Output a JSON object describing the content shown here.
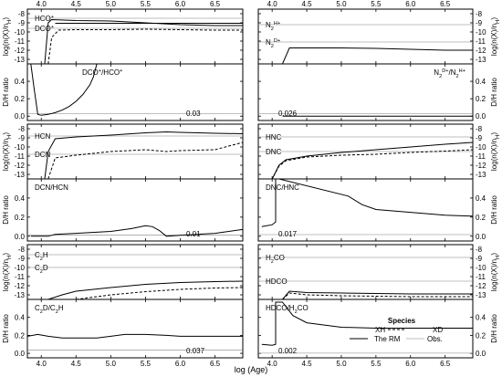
{
  "figure": {
    "x_axis_label": "log (Age)",
    "top_ticks": [
      "4.0",
      "4.5",
      "5.0",
      "5.5",
      "6.0",
      "6.5"
    ],
    "bottom_ticks": [
      "4.0",
      "4.5",
      "5.0",
      "5.5",
      "6.0",
      "6.5"
    ],
    "abund_ylabel_left": "log(n(X)/n",
    "abund_ylabel_sub": "H",
    "abund_ylabel_end": ")",
    "abund_ylabel_right_prefix": "log(n(X)/n",
    "ratio_ylabel": "D/H ratio",
    "abund_ticks": [
      "-8",
      "-9",
      "-10",
      "-11",
      "-12",
      "-13"
    ],
    "ratio_ticks": [
      "0.4",
      "0.2",
      "0.0"
    ],
    "legend": {
      "title": "Species",
      "xh_label": "XH",
      "xd_label": "XD",
      "rm_label": "The RM",
      "obs_label": "Obs."
    }
  },
  "chart_data": [
    {
      "type": "line",
      "panel": "abundance",
      "species_h": "HCO",
      "species_h_sup": "+",
      "species_d": "DCO",
      "species_d_sup": "+",
      "xlim": [
        3.8,
        6.9
      ],
      "ylim": [
        -13.5,
        -7.5
      ],
      "obs_h": -8.5,
      "obs_d": -9.6,
      "series": [
        {
          "name": "XH",
          "style": "solid",
          "x": [
            4.05,
            4.1,
            4.15,
            4.5,
            5.0,
            5.5,
            6.0,
            6.5,
            6.9
          ],
          "y": [
            -13.5,
            -9.0,
            -8.65,
            -8.75,
            -8.8,
            -9.0,
            -9.2,
            -9.3,
            -9.3
          ]
        },
        {
          "name": "XD",
          "style": "dashed",
          "x": [
            4.1,
            4.15,
            4.25,
            4.5,
            5.0,
            5.5,
            6.0,
            6.5,
            6.9
          ],
          "y": [
            -13.5,
            -10.6,
            -9.8,
            -9.75,
            -9.75,
            -9.7,
            -9.75,
            -9.8,
            -9.8
          ]
        },
        {
          "name": "RM",
          "style": "solid",
          "x": [
            4.2,
            6.9
          ],
          "y": [
            -9.05,
            -9.05
          ]
        }
      ]
    },
    {
      "type": "line",
      "panel": "ratio",
      "label_num": "DCO",
      "label_num_sup": "+",
      "label_den": "HCO",
      "label_den_sup": "+",
      "value_label": "0.03",
      "xlim": [
        3.8,
        6.9
      ],
      "ylim": [
        -0.05,
        0.6
      ],
      "obs": 0.03,
      "series": [
        {
          "name": "ratio",
          "style": "solid",
          "x": [
            3.85,
            3.9,
            3.95,
            4.0,
            4.1,
            4.2,
            4.3,
            4.4,
            4.5,
            4.6,
            4.7,
            4.75,
            4.8
          ],
          "y": [
            0.6,
            0.3,
            0.02,
            0.01,
            0.02,
            0.04,
            0.07,
            0.11,
            0.17,
            0.25,
            0.36,
            0.45,
            0.6
          ]
        }
      ]
    },
    {
      "type": "line",
      "panel": "abundance",
      "species_h": "N",
      "species_h_sub": "2",
      "species_h_sup": "H",
      "species_h_sup2": "+",
      "species_d": "N",
      "species_d_sub": "2",
      "species_d_sup": "D",
      "species_d_sup2": "+",
      "xlim": [
        3.8,
        6.9
      ],
      "ylim": [
        -13.5,
        -7.5
      ],
      "obs_h": -9.2,
      "obs_d": -11.1,
      "series": [
        {
          "name": "XH",
          "style": "solid",
          "x": [
            4.15,
            4.25,
            4.5,
            5.0,
            5.5,
            6.0,
            6.5,
            6.9
          ],
          "y": [
            -13.5,
            -11.75,
            -11.75,
            -11.75,
            -11.8,
            -11.9,
            -12.0,
            -12.0
          ]
        },
        {
          "name": "XD",
          "style": "dashed",
          "x": [
            5.5,
            6.0,
            6.5,
            6.9
          ],
          "y": [
            -13.5,
            -13.5,
            -13.5,
            -13.5
          ]
        }
      ]
    },
    {
      "type": "line",
      "panel": "ratio",
      "label_num": "N",
      "label_num_sub": "2",
      "label_num_sup": "D",
      "label_num_sup2": "+",
      "label_den": "N",
      "label_den_sub": "2",
      "label_den_sup": "H",
      "label_den_sup2": "+",
      "value_label": "0.026",
      "xlim": [
        3.8,
        6.9
      ],
      "ylim": [
        -0.05,
        0.6
      ],
      "obs": 0.026,
      "series": [
        {
          "name": "ratio",
          "style": "solid",
          "x": [
            4.15,
            4.2,
            4.3,
            4.5,
            5.0,
            5.5,
            6.0,
            6.5,
            6.9
          ],
          "y": [
            0.0,
            0.0,
            0.0,
            0.0,
            0.0,
            0.0,
            0.0,
            0.0,
            0.0
          ]
        }
      ]
    },
    {
      "type": "line",
      "panel": "abundance",
      "species_h": "HCN",
      "species_d": "DCN",
      "xlim": [
        3.8,
        6.9
      ],
      "ylim": [
        -13.5,
        -7.5
      ],
      "obs_h": -8.8,
      "obs_d": -10.8,
      "series": [
        {
          "name": "XH",
          "style": "solid",
          "x": [
            4.05,
            4.1,
            4.2,
            4.5,
            5.0,
            5.5,
            5.8,
            6.0,
            6.5,
            6.9
          ],
          "y": [
            -13.5,
            -10.5,
            -9.1,
            -8.9,
            -8.7,
            -8.45,
            -8.35,
            -8.4,
            -8.5,
            -8.55
          ]
        },
        {
          "name": "XD",
          "style": "dashed",
          "x": [
            4.1,
            4.2,
            4.5,
            5.0,
            5.5,
            5.8,
            6.0,
            6.5,
            6.9
          ],
          "y": [
            -13.5,
            -11.2,
            -10.9,
            -10.5,
            -10.3,
            -10.5,
            -10.4,
            -10.3,
            -9.5
          ]
        }
      ]
    },
    {
      "type": "line",
      "panel": "ratio",
      "label_num": "DCN",
      "label_den": "HCN",
      "value_label": "0.01",
      "xlim": [
        3.8,
        6.9
      ],
      "ylim": [
        -0.05,
        0.6
      ],
      "obs": 0.01,
      "series": [
        {
          "name": "ratio",
          "style": "solid",
          "x": [
            3.85,
            4.0,
            4.1,
            4.2,
            4.5,
            5.0,
            5.3,
            5.5,
            5.6,
            5.7,
            5.8,
            6.0,
            6.5,
            6.9
          ],
          "y": [
            0.0,
            0.0,
            0.0,
            0.02,
            0.03,
            0.05,
            0.08,
            0.11,
            0.1,
            0.06,
            0.0,
            0.01,
            0.03,
            0.07
          ]
        }
      ]
    },
    {
      "type": "line",
      "panel": "abundance",
      "species_h": "HNC",
      "species_d": "DNC",
      "xlim": [
        3.8,
        6.9
      ],
      "ylim": [
        -13.5,
        -7.5
      ],
      "obs_h": -8.9,
      "obs_d": -10.5,
      "series": [
        {
          "name": "XH",
          "style": "solid",
          "x": [
            3.85,
            4.0,
            4.1,
            4.2,
            4.5,
            5.0,
            5.5,
            6.0,
            6.5,
            6.9
          ],
          "y": [
            -13.5,
            -13.5,
            -12.0,
            -11.4,
            -11.0,
            -10.6,
            -10.3,
            -10.0,
            -9.7,
            -9.5
          ]
        },
        {
          "name": "XD",
          "style": "dashed",
          "x": [
            3.85,
            4.0,
            4.1,
            4.2,
            4.5,
            5.0,
            5.5,
            6.0,
            6.5,
            6.9
          ],
          "y": [
            -13.5,
            -13.5,
            -12.1,
            -11.5,
            -11.1,
            -10.9,
            -10.8,
            -10.6,
            -10.45,
            -10.3
          ]
        }
      ]
    },
    {
      "type": "line",
      "panel": "ratio",
      "label_num": "DNC",
      "label_den": "HNC",
      "value_label": "0.017",
      "xlim": [
        3.8,
        6.9
      ],
      "ylim": [
        -0.05,
        0.6
      ],
      "obs": 0.017,
      "series": [
        {
          "name": "ratio",
          "style": "solid",
          "x": [
            3.85,
            4.0,
            4.05,
            4.05,
            4.1,
            5.1,
            5.3,
            5.5,
            6.0,
            6.5,
            6.9
          ],
          "y": [
            0.1,
            0.12,
            0.15,
            0.6,
            0.6,
            0.42,
            0.33,
            0.28,
            0.25,
            0.22,
            0.21
          ]
        }
      ]
    },
    {
      "type": "line",
      "panel": "abundance",
      "species_h": "C",
      "species_h_sub": "2",
      "species_h_end": "H",
      "species_d": "C",
      "species_d_sub": "2",
      "species_d_end": "D",
      "xlim": [
        3.8,
        6.9
      ],
      "ylim": [
        -13.5,
        -7.5
      ],
      "obs_h": -8.6,
      "obs_d": -10.0,
      "series": [
        {
          "name": "XH",
          "style": "solid",
          "x": [
            4.1,
            4.3,
            4.5,
            5.0,
            5.5,
            6.0,
            6.5,
            6.9
          ],
          "y": [
            -13.5,
            -13.0,
            -12.6,
            -12.2,
            -11.85,
            -11.65,
            -11.55,
            -11.5
          ]
        },
        {
          "name": "XD",
          "style": "dashed",
          "x": [
            4.5,
            4.7,
            5.0,
            5.5,
            6.0,
            6.5,
            6.9
          ],
          "y": [
            -13.5,
            -13.3,
            -13.0,
            -12.65,
            -12.4,
            -12.25,
            -12.2
          ]
        }
      ]
    },
    {
      "type": "line",
      "panel": "ratio",
      "label_num": "C",
      "label_num_sub": "2",
      "label_num_end": "D",
      "label_den": "C",
      "label_den_sub": "2",
      "label_den_end": "H",
      "value_label": "0.037",
      "xlim": [
        3.8,
        6.9
      ],
      "ylim": [
        -0.05,
        0.6
      ],
      "obs": 0.037,
      "series": [
        {
          "name": "ratio",
          "style": "solid",
          "x": [
            3.8,
            3.95,
            4.1,
            4.3,
            4.5,
            4.8,
            5.0,
            5.2,
            5.5,
            5.8,
            6.0,
            6.5,
            6.9
          ],
          "y": [
            0.19,
            0.21,
            0.19,
            0.17,
            0.17,
            0.17,
            0.19,
            0.21,
            0.21,
            0.2,
            0.19,
            0.19,
            0.19
          ]
        }
      ]
    },
    {
      "type": "line",
      "panel": "abundance",
      "species_h": "H",
      "species_h_sub": "2",
      "species_h_end": "CO",
      "species_d": "HDCO",
      "xlim": [
        3.8,
        6.9
      ],
      "ylim": [
        -13.5,
        -7.5
      ],
      "obs_h": -8.9,
      "obs_d": -11.5,
      "series": [
        {
          "name": "XH",
          "style": "solid",
          "x": [
            4.15,
            4.25,
            4.5,
            5.0,
            5.5,
            6.0,
            6.5,
            6.9
          ],
          "y": [
            -13.5,
            -12.6,
            -12.75,
            -12.8,
            -12.85,
            -12.9,
            -12.9,
            -12.9
          ]
        },
        {
          "name": "XD",
          "style": "dashed",
          "x": [
            4.15,
            4.25,
            4.5,
            5.0,
            5.5,
            6.0,
            6.5,
            6.9
          ],
          "y": [
            -13.5,
            -12.8,
            -13.0,
            -13.1,
            -13.15,
            -13.2,
            -13.2,
            -13.2
          ]
        }
      ]
    },
    {
      "type": "line",
      "panel": "ratio",
      "label_num": "HDCO",
      "label_den": "H",
      "label_den_sub": "2",
      "label_den_end": "CO",
      "value_label": "0.002",
      "xlim": [
        3.8,
        6.9
      ],
      "ylim": [
        -0.05,
        0.6
      ],
      "obs": 0.002,
      "series": [
        {
          "name": "ratio",
          "style": "solid",
          "x": [
            3.85,
            4.0,
            4.05,
            4.05,
            4.15,
            4.3,
            4.5,
            5.0,
            5.5,
            6.0,
            6.5,
            6.9
          ],
          "y": [
            0.1,
            0.09,
            0.1,
            0.57,
            0.57,
            0.42,
            0.34,
            0.29,
            0.28,
            0.28,
            0.28,
            0.28
          ]
        }
      ]
    }
  ]
}
